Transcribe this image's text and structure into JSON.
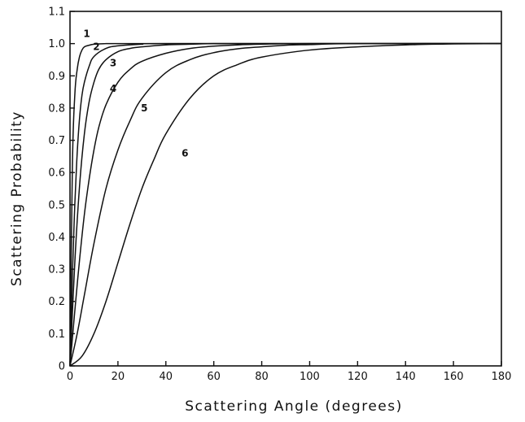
{
  "chart_data": {
    "type": "line",
    "title": "",
    "xlabel": "Scattering Angle (degrees)",
    "ylabel": "Scattering Probability",
    "xlim": [
      0,
      180
    ],
    "ylim": [
      0,
      1.1
    ],
    "xticks": [
      0,
      20,
      40,
      60,
      80,
      100,
      120,
      140,
      160,
      180
    ],
    "xtick_labels": [
      "0",
      "20",
      "40",
      "60",
      "80",
      "100",
      "120",
      "140",
      "160",
      "180"
    ],
    "yticks": [
      0,
      0.1,
      0.2,
      0.3,
      0.4,
      0.5,
      0.6,
      0.7,
      0.8,
      0.9,
      1.0,
      1.1
    ],
    "ytick_labels": [
      "0",
      "0.1",
      "0.2",
      "0.3",
      "0.4",
      "0.5",
      "0.6",
      "0.7",
      "0.8",
      "0.9",
      "1.0",
      "1.1"
    ],
    "grid": false,
    "legend": "none",
    "series": [
      {
        "label": "1",
        "x": [
          0,
          1,
          2,
          3,
          4,
          5,
          6,
          8,
          10,
          15,
          20,
          30,
          180
        ],
        "y": [
          0,
          0.62,
          0.84,
          0.92,
          0.96,
          0.98,
          0.99,
          0.995,
          0.998,
          1.0,
          1.0,
          1.0,
          1.0
        ]
      },
      {
        "label": "2",
        "x": [
          0,
          1,
          2,
          3,
          4,
          5,
          6,
          8,
          10,
          15,
          20,
          30,
          40,
          180
        ],
        "y": [
          0,
          0.28,
          0.5,
          0.66,
          0.77,
          0.84,
          0.88,
          0.93,
          0.96,
          0.985,
          0.993,
          0.998,
          1.0,
          1.0
        ]
      },
      {
        "label": "3",
        "x": [
          0,
          2,
          4,
          6,
          8,
          10,
          12,
          15,
          20,
          25,
          30,
          40,
          50,
          60,
          80,
          180
        ],
        "y": [
          0,
          0.32,
          0.56,
          0.72,
          0.82,
          0.88,
          0.92,
          0.95,
          0.975,
          0.985,
          0.99,
          0.996,
          0.998,
          1.0,
          1.0,
          1.0
        ]
      },
      {
        "label": "4",
        "x": [
          0,
          2,
          4,
          6,
          8,
          10,
          12,
          15,
          20,
          25,
          30,
          40,
          50,
          60,
          70,
          80,
          100,
          180
        ],
        "y": [
          0,
          0.17,
          0.33,
          0.47,
          0.58,
          0.67,
          0.74,
          0.81,
          0.88,
          0.92,
          0.945,
          0.97,
          0.985,
          0.992,
          0.996,
          0.998,
          1.0,
          1.0
        ]
      },
      {
        "label": "5",
        "x": [
          0,
          3,
          6,
          10,
          15,
          20,
          25,
          30,
          40,
          50,
          60,
          70,
          80,
          90,
          100,
          120,
          180
        ],
        "y": [
          0,
          0.1,
          0.22,
          0.38,
          0.55,
          0.67,
          0.76,
          0.83,
          0.91,
          0.95,
          0.972,
          0.984,
          0.99,
          0.995,
          0.997,
          1.0,
          1.0
        ]
      },
      {
        "label": "6",
        "x": [
          0,
          5,
          10,
          15,
          20,
          25,
          30,
          35,
          40,
          50,
          60,
          70,
          80,
          100,
          120,
          140,
          160,
          180
        ],
        "y": [
          0,
          0.03,
          0.1,
          0.2,
          0.32,
          0.44,
          0.55,
          0.64,
          0.72,
          0.83,
          0.9,
          0.935,
          0.958,
          0.98,
          0.99,
          0.996,
          0.999,
          1.0
        ]
      }
    ]
  }
}
